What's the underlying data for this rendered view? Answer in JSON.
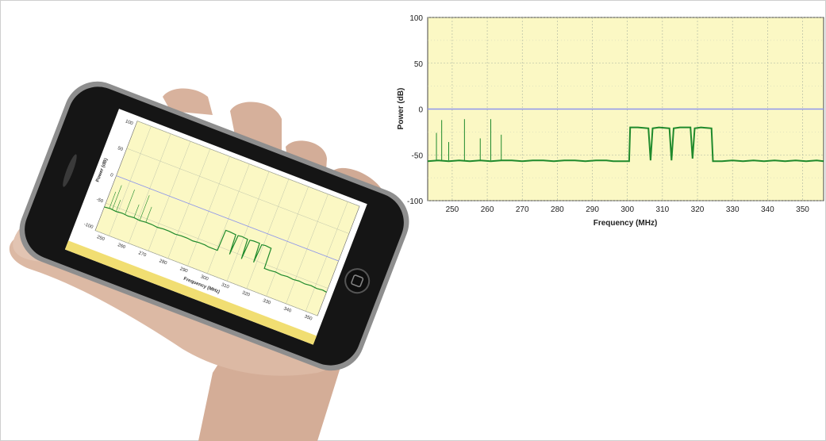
{
  "chart_data": {
    "type": "line",
    "title": "",
    "xlabel": "Frequency (MHz)",
    "ylabel": "Power (dB)",
    "xlim": [
      243,
      356
    ],
    "ylim": [
      -100,
      100
    ],
    "x_ticks": [
      250,
      260,
      270,
      280,
      290,
      300,
      310,
      320,
      330,
      340,
      350
    ],
    "y_ticks": [
      100,
      50,
      0,
      -50,
      -100
    ],
    "grid": true,
    "background_color": "#fbf8c4",
    "trace_color": "#1f8a2c",
    "reference_line": {
      "y": 0,
      "color": "#8d95ee"
    },
    "series": [
      {
        "points": [
          [
            243,
            -57
          ],
          [
            246,
            -56
          ],
          [
            249,
            -57
          ],
          [
            252,
            -56
          ],
          [
            255,
            -57
          ],
          [
            258,
            -56
          ],
          [
            261,
            -57
          ],
          [
            264,
            -56
          ],
          [
            267,
            -56
          ],
          [
            270,
            -57
          ],
          [
            273,
            -56
          ],
          [
            276,
            -56
          ],
          [
            279,
            -57
          ],
          [
            282,
            -56
          ],
          [
            285,
            -56
          ],
          [
            288,
            -57
          ],
          [
            291,
            -56
          ],
          [
            294,
            -56
          ],
          [
            296,
            -57
          ],
          [
            300.5,
            -57
          ],
          [
            300.8,
            -20
          ],
          [
            303,
            -20
          ],
          [
            306,
            -21
          ],
          [
            306.6,
            -56
          ],
          [
            307.2,
            -21
          ],
          [
            309,
            -20
          ],
          [
            312,
            -21
          ],
          [
            312.6,
            -56
          ],
          [
            313.2,
            -21
          ],
          [
            315,
            -20
          ],
          [
            318,
            -20
          ],
          [
            318.6,
            -54
          ],
          [
            319.2,
            -21
          ],
          [
            321,
            -20
          ],
          [
            324,
            -21
          ],
          [
            324.4,
            -57
          ],
          [
            327,
            -57
          ],
          [
            330,
            -56
          ],
          [
            333,
            -57
          ],
          [
            336,
            -56
          ],
          [
            339,
            -57
          ],
          [
            342,
            -56
          ],
          [
            345,
            -57
          ],
          [
            348,
            -56
          ],
          [
            351,
            -57
          ],
          [
            354,
            -56
          ],
          [
            356,
            -57
          ]
        ]
      }
    ],
    "spikes": [
      {
        "x": 245.5,
        "y": -26
      },
      {
        "x": 247.0,
        "y": -12
      },
      {
        "x": 249.0,
        "y": -36
      },
      {
        "x": 253.5,
        "y": -11
      },
      {
        "x": 258.0,
        "y": -32
      },
      {
        "x": 261.0,
        "y": -11
      },
      {
        "x": 264.0,
        "y": -28
      }
    ]
  },
  "phone_chart": {
    "y_ticks": [
      "100",
      "50",
      "0",
      "-50",
      "-100"
    ],
    "x_ticks": [
      "250",
      "260",
      "270",
      "280",
      "290",
      "300",
      "310",
      "320",
      "330",
      "340",
      "350"
    ],
    "xlabel": "Frequency (MHz)",
    "ylabel": "Power (dB)"
  },
  "colors": {
    "skin": "#d9b8a3",
    "phone_body": "#1a1a1a",
    "phone_bezel": "#9a9a9a",
    "screen_strip": "#f1de72"
  }
}
